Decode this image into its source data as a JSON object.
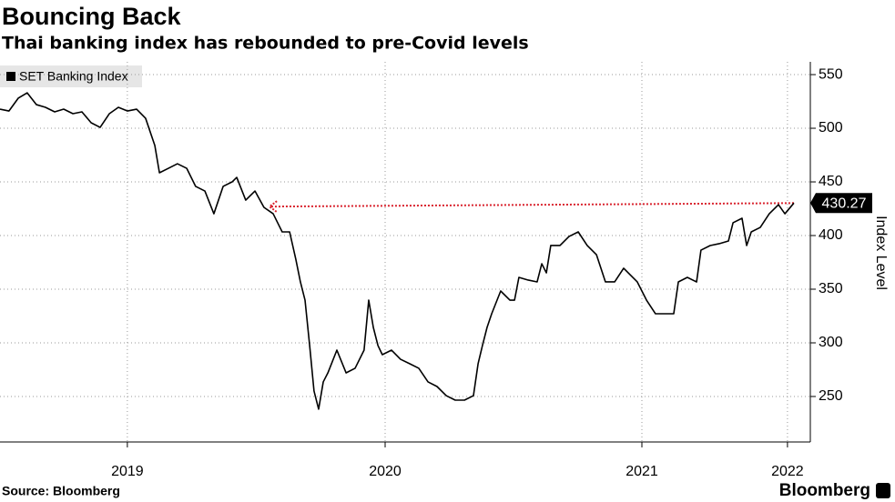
{
  "chart_data": {
    "type": "line",
    "title": "Bouncing Back",
    "subtitle": "Thai banking index has rebounded to pre-Covid levels",
    "source": "Source: Bloomberg",
    "brand": "Bloomberg",
    "y_label": "Index Level",
    "legend_position": "upper left",
    "grid": true,
    "xlim": [
      2019,
      2022.156
    ],
    "ylim": [
      207.6,
      561.9
    ],
    "yticks": [
      250,
      300,
      350,
      400,
      450,
      500,
      550
    ],
    "xticks": [
      {
        "value": 2019.496,
        "label": "2019"
      },
      {
        "value": 2020.5,
        "label": "2020"
      },
      {
        "value": 2021.5,
        "label": "2021"
      },
      {
        "value": 2022.067,
        "label": "2022"
      }
    ],
    "reference_arrow": {
      "x": [
        2020.05,
        2022.092
      ],
      "y": [
        427,
        430.27
      ],
      "color": "#d9232e"
    },
    "series": [
      {
        "name": "SET Banking Index",
        "color": "#000000",
        "x": [
          2019.0,
          2019.035,
          2019.071,
          2019.106,
          2019.142,
          2019.177,
          2019.213,
          2019.248,
          2019.284,
          2019.319,
          2019.355,
          2019.39,
          2019.426,
          2019.461,
          2019.496,
          2019.532,
          2019.567,
          2019.603,
          2019.621,
          2019.656,
          2019.691,
          2019.727,
          2019.762,
          2019.798,
          2019.833,
          2019.869,
          2019.904,
          2019.922,
          2019.957,
          2019.993,
          2020.028,
          2020.064,
          2020.099,
          2020.128,
          2020.152,
          2020.17,
          2020.188,
          2020.206,
          2020.223,
          2020.241,
          2020.259,
          2020.277,
          2020.312,
          2020.348,
          2020.383,
          2020.418,
          2020.436,
          2020.454,
          2020.472,
          2020.489,
          2020.525,
          2020.56,
          2020.596,
          2020.631,
          2020.667,
          2020.702,
          2020.738,
          2020.773,
          2020.809,
          2020.844,
          2020.862,
          2020.879,
          2020.897,
          2020.915,
          2020.95,
          2020.986,
          2021.004,
          2021.021,
          2021.057,
          2021.092,
          2021.11,
          2021.128,
          2021.145,
          2021.181,
          2021.216,
          2021.252,
          2021.287,
          2021.323,
          2021.358,
          2021.394,
          2021.429,
          2021.447,
          2021.482,
          2021.518,
          2021.553,
          2021.589,
          2021.624,
          2021.642,
          2021.677,
          2021.713,
          2021.73,
          2021.766,
          2021.801,
          2021.837,
          2021.855,
          2021.89,
          2021.908,
          2021.926,
          2021.961,
          2021.996,
          2022.032,
          2022.057,
          2022.092
        ],
        "values": [
          517.8,
          516.1,
          528,
          533,
          522,
          519.5,
          515.3,
          517.8,
          513.6,
          515.3,
          505.1,
          500.8,
          513.6,
          519.5,
          516.1,
          517.8,
          509.3,
          483.9,
          458.5,
          462.7,
          466.9,
          462.7,
          445.8,
          441.5,
          420.3,
          445.8,
          450,
          454.2,
          433,
          441.5,
          426.3,
          420.3,
          403.4,
          403.4,
          378,
          356.8,
          339.8,
          297.5,
          255.1,
          238.2,
          263.6,
          272,
          293.2,
          272,
          276.3,
          293.2,
          339.8,
          314.4,
          297.5,
          289,
          293.2,
          284.7,
          280.5,
          276.3,
          263.6,
          259.3,
          250.8,
          246.6,
          246.6,
          250.8,
          280.5,
          297.5,
          314.4,
          327.1,
          348.3,
          339.8,
          339.8,
          361,
          358.5,
          356.8,
          373.7,
          365.2,
          390.7,
          390.7,
          399.1,
          403.4,
          390.7,
          382.2,
          356.8,
          356.8,
          369.5,
          365.2,
          356.8,
          339.8,
          327.1,
          327.1,
          327.1,
          356.8,
          361,
          356.8,
          386.4,
          390.7,
          392.4,
          394.9,
          411.9,
          416.1,
          390.7,
          403.4,
          407.6,
          420.3,
          428.8,
          420.3,
          430.27
        ]
      }
    ]
  }
}
